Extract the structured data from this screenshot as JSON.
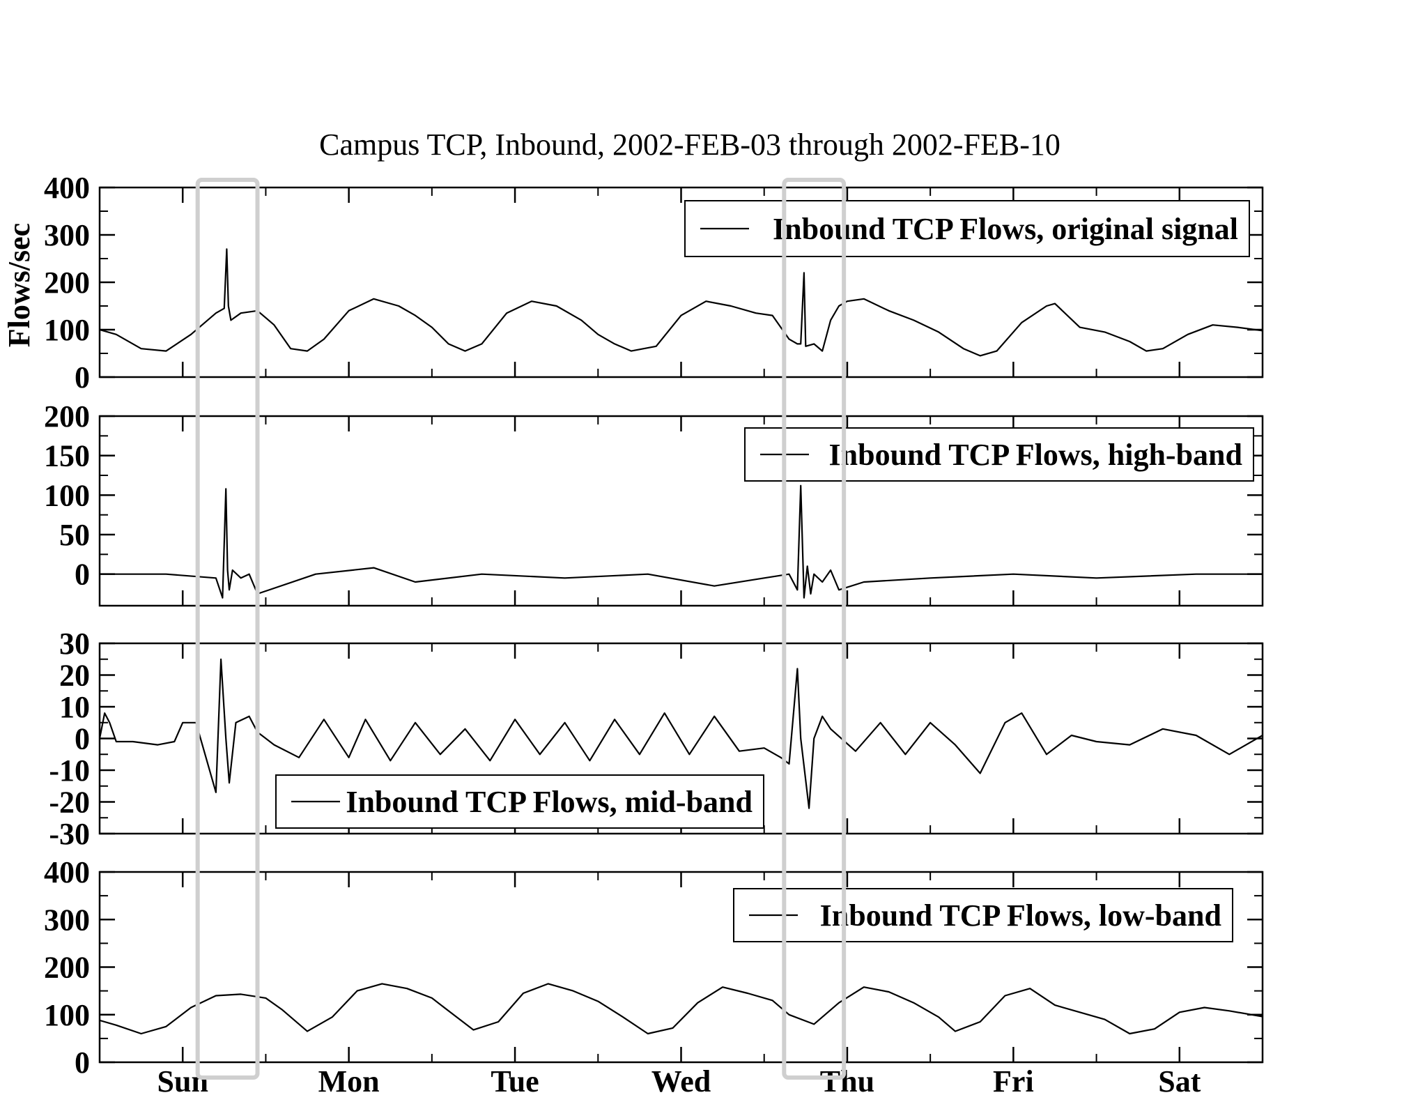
{
  "chart_data": {
    "type": "line",
    "title": "Campus TCP, Inbound, 2002-FEB-03 through 2002-FEB-10",
    "ylabel": "Flows/sec",
    "xlabel": "",
    "x_unit": "days from start of plot",
    "x_range": [
      0,
      7
    ],
    "x_ticks": [
      {
        "label": "Sun",
        "x": 0.5
      },
      {
        "label": "Mon",
        "x": 1.5
      },
      {
        "label": "Tue",
        "x": 2.5
      },
      {
        "label": "Wed",
        "x": 3.5
      },
      {
        "label": "Thu",
        "x": 4.5
      },
      {
        "label": "Fri",
        "x": 5.5
      },
      {
        "label": "Sat",
        "x": 6.5
      }
    ],
    "highlight_regions": [
      [
        0.59,
        0.95
      ],
      [
        4.12,
        4.48
      ]
    ],
    "panels": [
      {
        "name": "original",
        "ylim": [
          0,
          400
        ],
        "yticks": [
          0,
          100,
          200,
          300,
          400
        ],
        "legend": "Inbound TCP Flows, original signal",
        "legend_position": "top-right",
        "x": [
          0,
          0.1,
          0.25,
          0.4,
          0.55,
          0.7,
          0.75,
          0.765,
          0.775,
          0.79,
          0.85,
          0.95,
          1.05,
          1.15,
          1.25,
          1.35,
          1.5,
          1.65,
          1.8,
          1.9,
          2.0,
          2.1,
          2.2,
          2.3,
          2.45,
          2.6,
          2.75,
          2.9,
          3.0,
          3.1,
          3.2,
          3.35,
          3.5,
          3.65,
          3.8,
          3.95,
          4.05,
          4.15,
          4.2,
          4.22,
          4.24,
          4.25,
          4.3,
          4.35,
          4.4,
          4.45,
          4.5,
          4.6,
          4.75,
          4.9,
          5.05,
          5.2,
          5.3,
          5.4,
          5.55,
          5.7,
          5.75,
          5.9,
          6.05,
          6.2,
          6.3,
          6.4,
          6.55,
          6.7,
          6.85,
          7.0
        ],
        "y": [
          100,
          90,
          60,
          55,
          90,
          135,
          145,
          270,
          150,
          120,
          135,
          140,
          110,
          60,
          55,
          80,
          140,
          165,
          150,
          130,
          105,
          70,
          55,
          70,
          135,
          160,
          150,
          120,
          90,
          70,
          55,
          65,
          130,
          160,
          150,
          135,
          130,
          80,
          70,
          70,
          220,
          65,
          70,
          55,
          120,
          150,
          160,
          165,
          140,
          120,
          95,
          60,
          45,
          55,
          115,
          150,
          155,
          105,
          95,
          75,
          55,
          60,
          90,
          110,
          105,
          98
        ]
      },
      {
        "name": "high-band",
        "ylim": [
          -40,
          200
        ],
        "yticks": [
          0,
          50,
          100,
          150,
          200
        ],
        "legend": "Inbound TCP Flows, high-band",
        "legend_position": "top-right",
        "x": [
          0,
          0.4,
          0.7,
          0.74,
          0.76,
          0.77,
          0.78,
          0.8,
          0.85,
          0.9,
          0.95,
          1.3,
          1.65,
          1.9,
          2.3,
          2.8,
          3.3,
          3.7,
          4.0,
          4.15,
          4.2,
          4.22,
          4.24,
          4.26,
          4.28,
          4.3,
          4.35,
          4.4,
          4.45,
          4.6,
          5.0,
          5.5,
          6.0,
          6.6,
          7.0
        ],
        "y": [
          0,
          0,
          -5,
          -30,
          108,
          5,
          -20,
          5,
          -5,
          0,
          -25,
          0,
          8,
          -10,
          0,
          -5,
          0,
          -15,
          -5,
          0,
          -20,
          112,
          -30,
          10,
          -25,
          0,
          -10,
          5,
          -20,
          -10,
          -5,
          0,
          -5,
          0,
          0
        ]
      },
      {
        "name": "mid-band",
        "ylim": [
          -30,
          30
        ],
        "yticks": [
          -30,
          -20,
          -10,
          0,
          10,
          20,
          30
        ],
        "legend": "Inbound TCP Flows, mid-band",
        "legend_position": "bottom-left",
        "x": [
          0,
          0.03,
          0.06,
          0.1,
          0.2,
          0.35,
          0.45,
          0.5,
          0.58,
          0.7,
          0.73,
          0.76,
          0.78,
          0.82,
          0.9,
          0.95,
          1.05,
          1.2,
          1.35,
          1.5,
          1.6,
          1.75,
          1.9,
          2.05,
          2.2,
          2.35,
          2.5,
          2.65,
          2.8,
          2.95,
          3.1,
          3.25,
          3.4,
          3.55,
          3.7,
          3.85,
          4.0,
          4.1,
          4.15,
          4.2,
          4.22,
          4.27,
          4.3,
          4.35,
          4.4,
          4.55,
          4.7,
          4.85,
          5.0,
          5.15,
          5.3,
          5.45,
          5.55,
          5.7,
          5.85,
          6.0,
          6.2,
          6.4,
          6.6,
          6.8,
          7.0
        ],
        "y": [
          0,
          8,
          5,
          -1,
          -1,
          -2,
          -1,
          5,
          5,
          -17,
          25,
          0,
          -14,
          5,
          7,
          2,
          -2,
          -6,
          6,
          -6,
          6,
          -7,
          5,
          -5,
          3,
          -7,
          6,
          -5,
          5,
          -7,
          6,
          -5,
          8,
          -5,
          7,
          -4,
          -3,
          -6,
          -8,
          22,
          0,
          -22,
          0,
          7,
          3,
          -4,
          5,
          -5,
          5,
          -2,
          -11,
          5,
          8,
          -5,
          1,
          -1,
          -2,
          3,
          1,
          -5,
          1
        ]
      },
      {
        "name": "low-band",
        "ylim": [
          0,
          400
        ],
        "yticks": [
          0,
          100,
          200,
          300,
          400
        ],
        "legend": "Inbound TCP Flows, low-band",
        "legend_position": "top-right",
        "x": [
          0,
          0.1,
          0.25,
          0.4,
          0.55,
          0.7,
          0.85,
          1.0,
          1.1,
          1.25,
          1.4,
          1.55,
          1.7,
          1.85,
          2.0,
          2.1,
          2.25,
          2.4,
          2.55,
          2.7,
          2.85,
          3.0,
          3.15,
          3.3,
          3.45,
          3.6,
          3.75,
          3.9,
          4.05,
          4.15,
          4.3,
          4.45,
          4.6,
          4.75,
          4.9,
          5.05,
          5.15,
          5.3,
          5.45,
          5.6,
          5.75,
          5.9,
          6.05,
          6.2,
          6.35,
          6.5,
          6.65,
          6.8,
          7.0
        ],
        "y": [
          88,
          78,
          60,
          75,
          115,
          140,
          143,
          135,
          110,
          65,
          95,
          150,
          165,
          155,
          135,
          108,
          68,
          85,
          145,
          165,
          150,
          128,
          95,
          60,
          72,
          125,
          158,
          145,
          130,
          100,
          80,
          125,
          158,
          148,
          125,
          95,
          65,
          85,
          140,
          155,
          120,
          105,
          90,
          60,
          70,
          105,
          115,
          108,
          96
        ]
      }
    ]
  }
}
